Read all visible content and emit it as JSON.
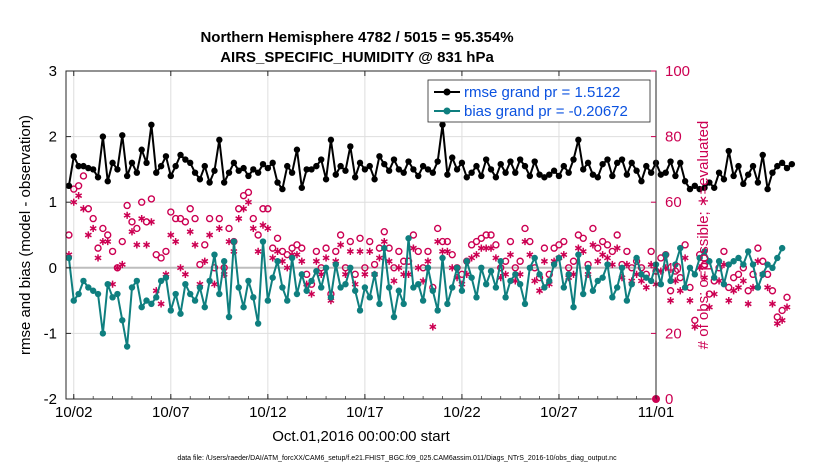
{
  "chart_data": {
    "type": "line",
    "title": "Northern Hemisphere 4782 / 5015 = 95.354%",
    "subtitle": "AIRS_SPECIFIC_HUMIDITY @ 831 hPa",
    "xlabel": "Oct.01,2016 00:00:00 start",
    "ylabel": "rmse and bias (model - observation)",
    "ylabel_right": "# of obs: o=possible; ∗=evaluated",
    "xlim": [
      0.6,
      31.0
    ],
    "ylim": [
      -2,
      3
    ],
    "ylim_right": [
      0,
      100
    ],
    "x_ticks": [
      1,
      6,
      11,
      16,
      21,
      26,
      31
    ],
    "x_tick_labels": [
      "10/02",
      "10/07",
      "10/12",
      "10/17",
      "10/22",
      "10/27",
      "11/01"
    ],
    "y_ticks": [
      -2,
      -1,
      0,
      1,
      2,
      3
    ],
    "y_ticks_right": [
      0,
      20,
      40,
      60,
      80,
      100
    ],
    "grid": true,
    "zero_line": 0,
    "legend_position": "top-right",
    "series": [
      {
        "name": "rmse grand pr = 1.5122",
        "color": "#000000",
        "marker": "filled-circle",
        "axis": "left",
        "x_start": 0.75,
        "x_step": 0.25,
        "values": [
          1.25,
          1.7,
          1.55,
          1.55,
          1.52,
          1.5,
          1.38,
          2.0,
          1.32,
          1.6,
          1.5,
          2.02,
          1.4,
          1.6,
          1.45,
          1.8,
          1.6,
          2.18,
          1.45,
          1.55,
          1.7,
          1.4,
          1.55,
          1.72,
          1.65,
          1.6,
          1.45,
          1.35,
          1.55,
          1.3,
          1.48,
          1.95,
          1.3,
          1.45,
          1.6,
          1.48,
          1.52,
          1.4,
          1.5,
          1.45,
          1.58,
          1.52,
          1.6,
          1.3,
          1.2,
          1.55,
          1.45,
          1.8,
          1.22,
          1.5,
          1.5,
          1.55,
          1.65,
          1.35,
          1.95,
          1.42,
          1.55,
          1.48,
          1.85,
          1.38,
          1.6,
          1.5,
          1.55,
          1.35,
          1.7,
          1.58,
          1.48,
          1.65,
          1.5,
          1.45,
          1.62,
          1.5,
          1.4,
          1.55,
          1.5,
          1.45,
          1.62,
          2.18,
          1.42,
          1.68,
          1.5,
          1.6,
          1.38,
          1.45,
          1.55,
          1.4,
          1.65,
          1.5,
          1.38,
          1.58,
          1.45,
          1.62,
          1.45,
          1.65,
          1.55,
          1.4,
          1.62,
          1.42,
          1.38,
          1.42,
          1.48,
          1.4,
          1.55,
          1.45,
          1.65,
          1.95,
          1.5,
          1.6,
          1.42,
          1.38,
          1.58,
          1.65,
          1.4,
          1.6,
          1.65,
          1.42,
          1.6,
          1.48,
          1.32,
          1.55,
          1.45,
          1.6,
          1.42,
          1.45,
          1.62,
          1.4,
          1.6,
          1.32,
          1.2,
          1.25,
          1.2,
          1.22,
          1.3,
          1.22,
          1.45,
          1.35,
          1.78,
          1.4,
          1.55,
          1.28,
          1.42,
          1.55,
          1.3,
          1.72,
          1.2,
          1.45,
          1.55,
          1.6,
          1.52,
          1.58
        ]
      },
      {
        "name": "bias grand pr = -0.20672",
        "color": "#0f7f7f",
        "marker": "filled-circle",
        "axis": "left",
        "x_start": 0.75,
        "x_step": 0.25,
        "values": [
          0.15,
          -0.5,
          -0.4,
          -0.2,
          -0.3,
          -0.35,
          -0.4,
          -1.0,
          -0.25,
          -0.45,
          -0.4,
          -0.8,
          -1.2,
          -0.3,
          -0.2,
          -0.6,
          -0.5,
          -0.55,
          -0.45,
          -0.2,
          -0.15,
          -0.65,
          -0.4,
          -0.7,
          -0.25,
          -0.4,
          -0.5,
          -0.3,
          -0.6,
          -0.2,
          0.2,
          -0.4,
          0.1,
          -0.75,
          0.4,
          -0.3,
          -0.6,
          -0.2,
          -0.45,
          -0.85,
          0.4,
          -0.5,
          -0.15,
          0.1,
          -0.3,
          -0.5,
          0.15,
          -0.4,
          -0.1,
          -0.35,
          -0.2,
          -0.05,
          -0.3,
          0.0,
          -0.45,
          0.05,
          -0.3,
          -0.25,
          0.0,
          -0.35,
          -0.65,
          -0.3,
          -0.45,
          -0.1,
          -0.55,
          0.3,
          -0.3,
          -0.75,
          -0.35,
          -0.55,
          0.45,
          -0.3,
          -0.25,
          -0.5,
          0.0,
          -0.35,
          -0.65,
          0.15,
          -0.55,
          -0.3,
          0.0,
          -0.35,
          0.1,
          -0.15,
          -0.45,
          0.0,
          -0.25,
          -0.05,
          -0.3,
          0.1,
          -0.45,
          -0.2,
          -0.1,
          -0.25,
          -0.55,
          0.0,
          0.15,
          -0.1,
          -0.3,
          -0.2,
          0.05,
          0.15,
          -0.3,
          -0.1,
          -0.6,
          0.2,
          -0.4,
          0.0,
          -0.35,
          -0.2,
          -0.15,
          0.05,
          -0.45,
          -0.3,
          0.0,
          -0.5,
          -0.25,
          0.15,
          -0.1,
          -0.15,
          -0.2,
          0.05,
          -0.25,
          0.2,
          -0.2,
          0.05,
          0.3,
          -0.3,
          0.0,
          -0.1,
          0.15,
          0.25,
          0.1,
          -0.15,
          0.1,
          -0.25,
          0.05,
          0.1,
          0.15,
          0.05,
          0.25,
          0.05,
          -0.3,
          -0.1,
          0.05,
          0.0,
          0.15,
          0.3
        ]
      },
      {
        "name": "# obs possible",
        "color": "#cc0052",
        "marker": "open-circle",
        "axis": "right",
        "x_start": 0.75,
        "x_step": 0.25,
        "values": [
          50,
          64,
          65,
          68,
          58,
          55,
          46,
          52,
          50,
          45,
          40,
          48,
          59,
          54,
          52,
          60,
          54,
          61,
          44,
          43,
          45,
          57,
          55,
          55,
          54,
          58,
          55,
          41,
          47,
          55,
          40,
          55,
          40,
          52,
          48,
          58,
          62,
          63,
          55,
          50,
          58,
          58,
          46,
          49,
          45,
          44,
          46,
          47,
          46,
          38,
          35,
          45,
          40,
          46,
          32,
          45,
          50,
          40,
          48,
          38,
          49,
          40,
          48,
          41,
          46,
          51,
          46,
          40,
          45,
          42,
          42,
          50,
          45,
          40,
          45,
          34,
          52,
          48,
          48,
          44,
          40,
          38,
          42,
          47,
          48,
          49,
          50,
          50,
          47,
          40,
          42,
          48,
          40,
          42,
          52,
          48,
          40,
          37,
          46,
          38,
          46,
          47,
          48,
          40,
          42,
          50,
          49,
          41,
          52,
          46,
          48,
          47,
          45,
          50,
          41,
          45,
          40,
          42,
          40,
          38,
          45,
          39,
          43,
          44,
          33,
          39,
          37,
          47,
          34,
          24,
          44,
          41,
          32,
          36,
          40,
          45,
          34,
          37,
          38,
          40,
          33,
          38,
          46,
          42,
          38,
          33,
          25,
          27,
          31
        ]
      },
      {
        "name": "# obs evaluated",
        "color": "#cc0052",
        "marker": "asterisk",
        "axis": "right",
        "x_start": 0.75,
        "x_step": 0.25,
        "values": [
          44,
          60,
          62,
          58,
          50,
          52,
          43,
          48,
          48,
          35,
          40,
          41,
          56,
          51,
          47,
          55,
          47,
          54,
          33,
          29,
          38,
          50,
          48,
          40,
          38,
          51,
          47,
          35,
          42,
          50,
          35,
          52,
          38,
          48,
          45,
          55,
          58,
          60,
          52,
          45,
          53,
          52,
          43,
          45,
          42,
          40,
          44,
          44,
          42,
          35,
          32,
          42,
          38,
          43,
          30,
          42,
          47,
          38,
          45,
          35,
          45,
          38,
          45,
          38,
          43,
          48,
          42,
          36,
          40,
          38,
          38,
          46,
          40,
          36,
          42,
          22,
          48,
          45,
          45,
          40,
          37,
          35,
          38,
          43,
          44,
          46,
          46,
          46,
          43,
          37,
          38,
          44,
          36,
          38,
          48,
          44,
          36,
          33,
          42,
          35,
          42,
          43,
          44,
          37,
          38,
          46,
          45,
          38,
          47,
          42,
          44,
          43,
          41,
          46,
          37,
          41,
          36,
          38,
          36,
          34,
          41,
          35,
          39,
          40,
          30,
          36,
          33,
          43,
          30,
          22,
          40,
          37,
          28,
          32,
          36,
          41,
          30,
          33,
          34,
          36,
          29,
          34,
          42,
          38,
          34,
          29,
          23,
          24,
          28
        ]
      }
    ]
  },
  "footer": {
    "data_file": "data file: /Users/raeder/DAI/ATM_forcXX/CAM6_setup/f.e21.FHIST_BGC.f09_025.CAM6assim.011/Diags_NTrS_2016-10/obs_diag_output.nc"
  }
}
